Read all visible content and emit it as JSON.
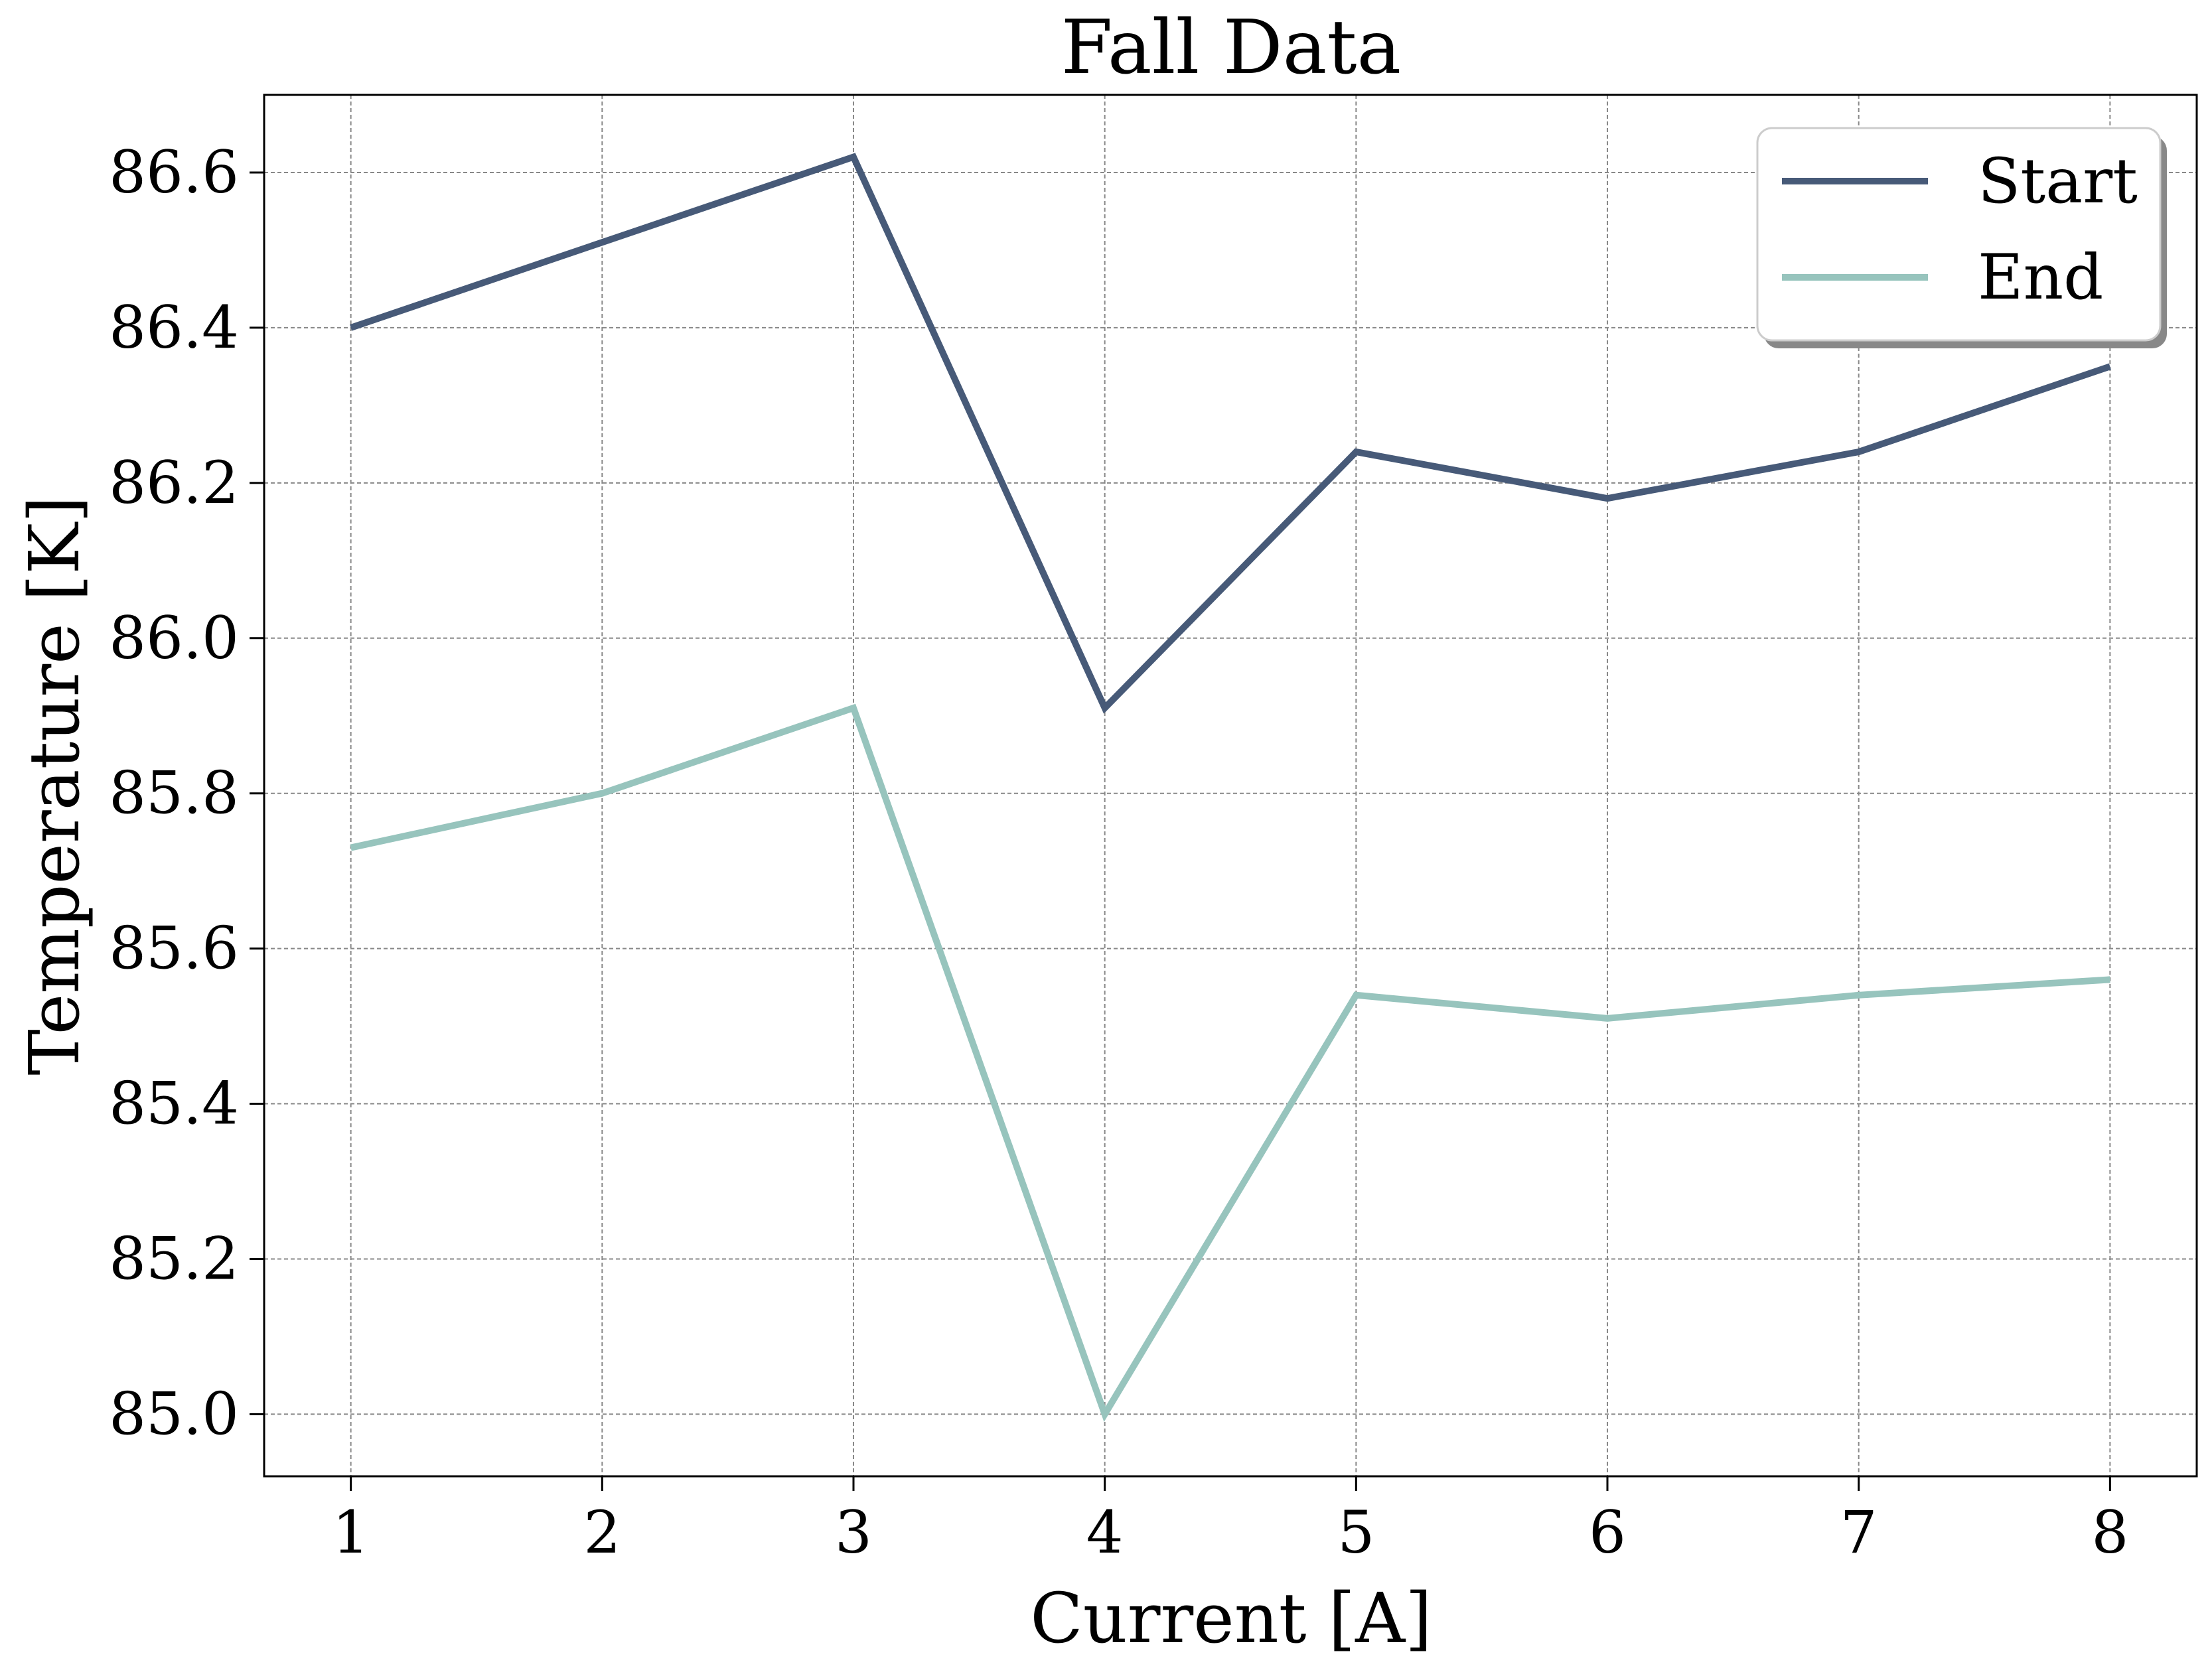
{
  "chart_data": {
    "type": "line",
    "title": "Fall Data",
    "xlabel": "Current [A]",
    "ylabel": "Temperature [K]",
    "x": [
      1,
      2,
      3,
      4,
      5,
      6,
      7,
      8
    ],
    "xticks": [
      "1",
      "2",
      "3",
      "4",
      "5",
      "6",
      "7",
      "8"
    ],
    "yticks": [
      "85.0",
      "85.2",
      "85.4",
      "85.6",
      "85.8",
      "86.0",
      "86.2",
      "86.4",
      "86.6"
    ],
    "xlim": [
      0.655,
      8.345
    ],
    "ylim": [
      84.92,
      86.7
    ],
    "grid": true,
    "legend_position": "top-right",
    "series": [
      {
        "name": "Start",
        "color": "#475a78",
        "values": [
          86.4,
          86.51,
          86.62,
          85.91,
          86.24,
          86.18,
          86.24,
          86.35
        ]
      },
      {
        "name": "End",
        "color": "#97c4bd",
        "values": [
          85.73,
          85.8,
          85.91,
          85.0,
          85.54,
          85.51,
          85.54,
          85.56
        ]
      }
    ]
  }
}
